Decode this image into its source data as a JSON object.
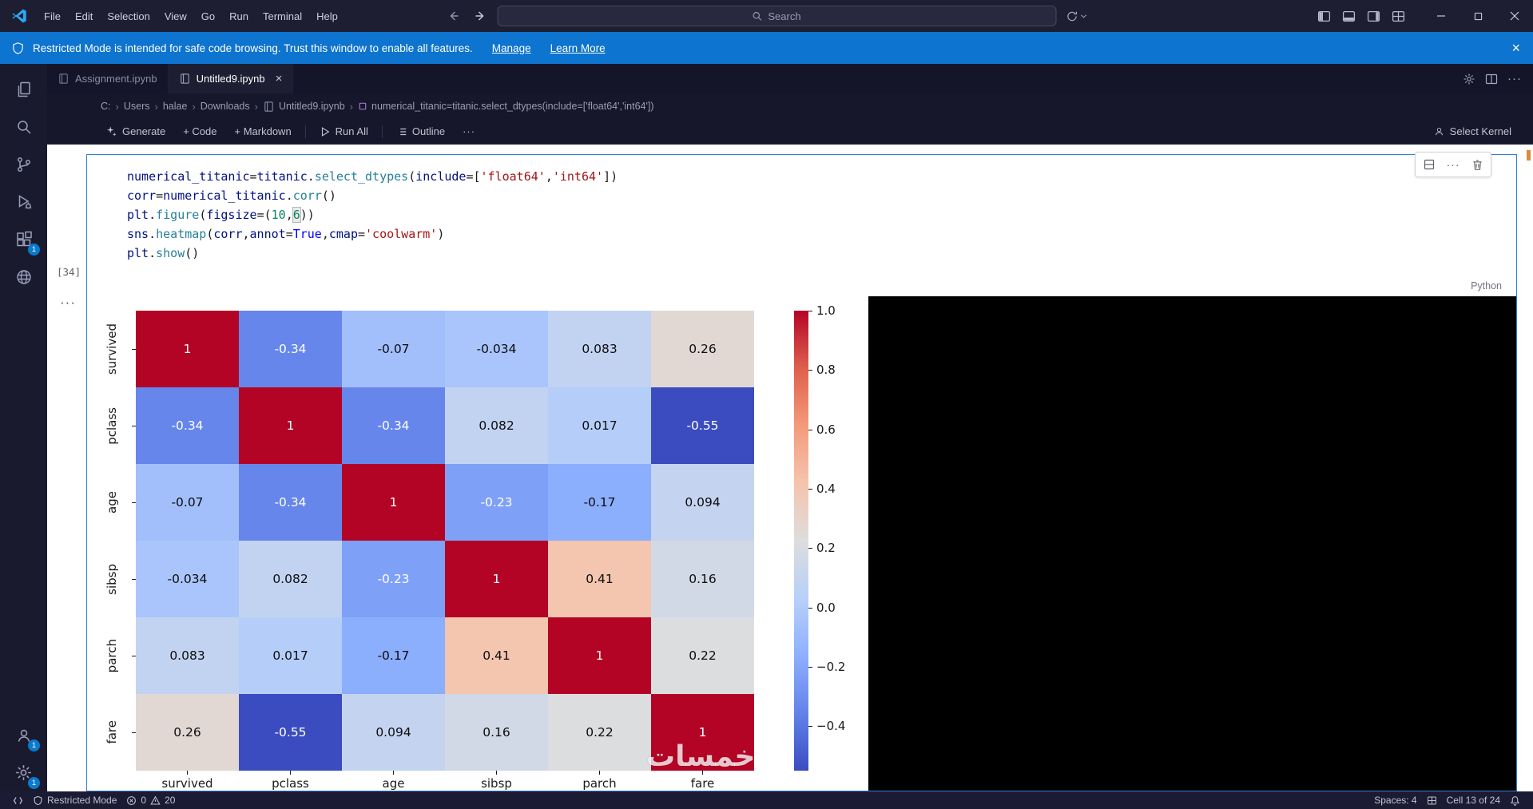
{
  "titlebar": {
    "menus": [
      "File",
      "Edit",
      "Selection",
      "View",
      "Go",
      "Run",
      "Terminal",
      "Help"
    ],
    "search": {
      "placeholder": "Search"
    }
  },
  "banner": {
    "message": "Restricted Mode is intended for safe code browsing. Trust this window to enable all features.",
    "manage_label": "Manage",
    "learn_more_label": "Learn More"
  },
  "activity_bar": {
    "badges": {
      "extensions": "1",
      "accounts": "1",
      "settings": "1"
    }
  },
  "tabs": [
    {
      "label": "Assignment.ipynb",
      "active": false
    },
    {
      "label": "Untitled9.ipynb",
      "active": true
    }
  ],
  "breadcrumb": [
    {
      "label": "C:"
    },
    {
      "label": "Users"
    },
    {
      "label": "halae"
    },
    {
      "label": "Downloads"
    },
    {
      "label": "Untitled9.ipynb",
      "icon": "notebook-icon"
    },
    {
      "label": "numerical_titanic=titanic.select_dtypes(include=['float64','int64'])",
      "icon": "symbol-icon"
    }
  ],
  "notebook_toolbar": {
    "generate": "Generate",
    "add_code": "+ Code",
    "add_markdown": "+ Markdown",
    "run_all": "Run All",
    "outline": "Outline",
    "more": "···",
    "select_kernel": "Select Kernel"
  },
  "cell": {
    "execution_count": "[34]",
    "language": "Python",
    "code_tokens": [
      [
        [
          "numerical_titanic",
          "v"
        ],
        [
          "=",
          "o"
        ],
        [
          "titanic",
          "v"
        ],
        [
          ".",
          "o"
        ],
        [
          "select_dtypes",
          "f"
        ],
        [
          "(",
          "o"
        ],
        [
          "include",
          "v"
        ],
        [
          "=",
          "o"
        ],
        [
          "[",
          "o"
        ],
        [
          "'float64'",
          "s"
        ],
        [
          ",",
          "o"
        ],
        [
          "'int64'",
          "s"
        ],
        [
          "]",
          "o"
        ],
        [
          ")",
          "o"
        ]
      ],
      [
        [
          "corr",
          "v"
        ],
        [
          "=",
          "o"
        ],
        [
          "numerical_titanic",
          "v"
        ],
        [
          ".",
          "o"
        ],
        [
          "corr",
          "f"
        ],
        [
          "()",
          "o"
        ]
      ],
      [
        [
          "plt",
          "v"
        ],
        [
          ".",
          "o"
        ],
        [
          "figure",
          "f"
        ],
        [
          "(",
          "o"
        ],
        [
          "figsize",
          "v"
        ],
        [
          "=",
          "o"
        ],
        [
          "(",
          "o"
        ],
        [
          "10",
          "n"
        ],
        [
          ",",
          "o"
        ],
        [
          "6",
          "n hl"
        ],
        [
          ")",
          "o"
        ],
        [
          ")",
          "o"
        ]
      ],
      [
        [
          "sns",
          "v"
        ],
        [
          ".",
          "o"
        ],
        [
          "heatmap",
          "f"
        ],
        [
          "(",
          "o"
        ],
        [
          "corr",
          "v"
        ],
        [
          ",",
          "o"
        ],
        [
          "annot",
          "v"
        ],
        [
          "=",
          "o"
        ],
        [
          "True",
          "k"
        ],
        [
          ",",
          "o"
        ],
        [
          "cmap",
          "v"
        ],
        [
          "=",
          "o"
        ],
        [
          "'coolwarm'",
          "s"
        ],
        [
          ")",
          "o"
        ]
      ],
      [
        [
          "plt",
          "v"
        ],
        [
          ".",
          "o"
        ],
        [
          "show",
          "f"
        ],
        [
          "()",
          "o"
        ]
      ]
    ]
  },
  "chart_data": {
    "type": "heatmap",
    "title": "",
    "categories": [
      "survived",
      "pclass",
      "age",
      "sibsp",
      "parch",
      "fare"
    ],
    "matrix": [
      [
        1,
        -0.34,
        -0.07,
        -0.034,
        0.083,
        0.26
      ],
      [
        -0.34,
        1,
        -0.34,
        0.082,
        0.017,
        -0.55
      ],
      [
        -0.07,
        -0.34,
        1,
        -0.23,
        -0.17,
        0.094
      ],
      [
        -0.034,
        0.082,
        -0.23,
        1,
        0.41,
        0.16
      ],
      [
        0.083,
        0.017,
        -0.17,
        0.41,
        1,
        0.22
      ],
      [
        0.26,
        -0.55,
        0.094,
        0.16,
        0.22,
        1
      ]
    ],
    "cmap": "coolwarm",
    "vmin": -0.55,
    "vmax": 1.0,
    "colorbar_ticks": [
      1.0,
      0.8,
      0.6,
      0.4,
      0.2,
      0.0,
      -0.2,
      -0.4
    ],
    "legend_position": "right",
    "watermark": "خمسات"
  },
  "statusbar": {
    "restricted_mode": "Restricted Mode",
    "errors": "0",
    "warnings": "20",
    "spaces": "Spaces: 4",
    "cell_position": "Cell 13 of 24"
  },
  "icons": {
    "search-icon": "magnifier",
    "shield-icon": "shield-outline",
    "error-icon": "circle-cross",
    "warning-icon": "triangle-exclamation",
    "bell-icon": "bell",
    "trash-icon": "trash-can",
    "play-icon": "triangle-right",
    "sparkle-icon": "four-point-star",
    "gear-icon": "cog",
    "notebook-icon": "book",
    "ellipsis-icon": "three-dots"
  }
}
